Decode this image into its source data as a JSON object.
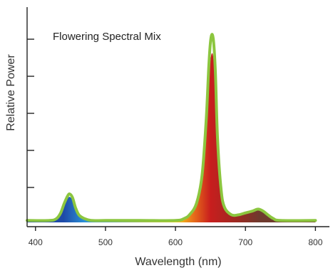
{
  "chart_data": {
    "type": "area",
    "title": "Flowering Spectral Mix",
    "xlabel": "Wavelength (nm)",
    "ylabel": "Relative Power",
    "xlim": [
      388,
      820
    ],
    "ylim": [
      0,
      1.1
    ],
    "x_ticks": [
      400,
      500,
      600,
      700,
      800
    ],
    "y_tick_count": 6,
    "grid": false,
    "legend": "none",
    "colors": {
      "outline": "#8cc63f",
      "blue": "#1e4aa8",
      "yellow": "#f2d21a",
      "orange": "#e8701a",
      "red": "#c81e1e",
      "brown": "#6e3a2e",
      "axis": "#222222"
    },
    "series": [
      {
        "name": "",
        "x": [
          388,
          420,
          430,
          436,
          441,
          446,
          449,
          453,
          457,
          462,
          470,
          480,
          500,
          550,
          600,
          612,
          620,
          630,
          638,
          644,
          648,
          651,
          654,
          657,
          660,
          665,
          670,
          680,
          690,
          700,
          710,
          718,
          725,
          732,
          740,
          750,
          800
        ],
        "y": [
          0.01,
          0.01,
          0.02,
          0.05,
          0.1,
          0.14,
          0.15,
          0.13,
          0.08,
          0.04,
          0.02,
          0.01,
          0.01,
          0.01,
          0.01,
          0.02,
          0.04,
          0.1,
          0.25,
          0.55,
          0.85,
          0.98,
          0.97,
          0.8,
          0.45,
          0.18,
          0.08,
          0.04,
          0.04,
          0.05,
          0.06,
          0.07,
          0.06,
          0.04,
          0.02,
          0.01,
          0.01
        ]
      }
    ]
  }
}
